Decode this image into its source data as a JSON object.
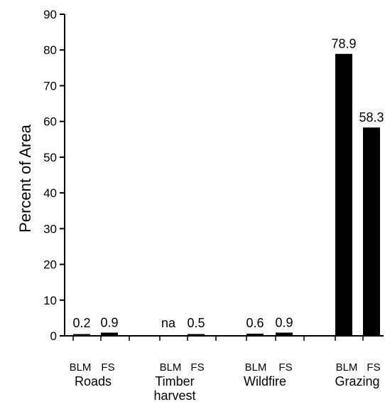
{
  "chart_data": {
    "type": "bar",
    "title": "",
    "xlabel": "",
    "ylabel": "Percent of Area",
    "ylim": [
      0,
      90
    ],
    "yticks": [
      0,
      10,
      20,
      30,
      40,
      50,
      60,
      70,
      80,
      90
    ],
    "grid": false,
    "groups": [
      {
        "name_lines": [
          "Roads"
        ],
        "bars": [
          {
            "agency": "BLM",
            "value": 0.2,
            "label": "0.2"
          },
          {
            "agency": "FS",
            "value": 0.9,
            "label": "0.9"
          }
        ]
      },
      {
        "name_lines": [
          "Timber",
          "harvest"
        ],
        "bars": [
          {
            "agency": "BLM",
            "value": null,
            "label": "na"
          },
          {
            "agency": "FS",
            "value": 0.5,
            "label": "0.5"
          }
        ]
      },
      {
        "name_lines": [
          "Wildfire"
        ],
        "bars": [
          {
            "agency": "BLM",
            "value": 0.6,
            "label": "0.6"
          },
          {
            "agency": "FS",
            "value": 0.9,
            "label": "0.9"
          }
        ]
      },
      {
        "name_lines": [
          "Grazing"
        ],
        "bars": [
          {
            "agency": "BLM",
            "value": 78.9,
            "label": "78.9"
          },
          {
            "agency": "FS",
            "value": 58.3,
            "label": "58.3"
          }
        ]
      }
    ],
    "bar_color": "#000000"
  }
}
